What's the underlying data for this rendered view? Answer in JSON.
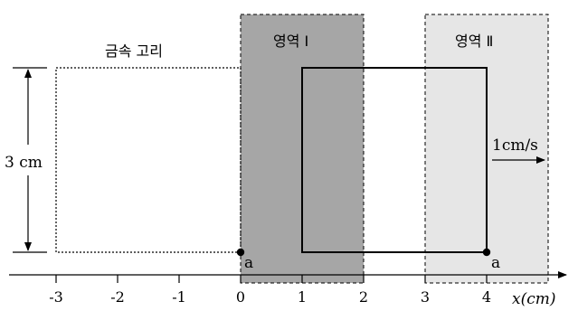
{
  "diagram": {
    "ring_label": "금속 고리",
    "region1_label": "영역 Ⅰ",
    "region2_label": "영역 Ⅱ",
    "height_label": "3 cm",
    "speed_label": "1cm/s",
    "point_label": "a",
    "axis_label": "x(cm)",
    "ticks": [
      "-3",
      "-2",
      "-1",
      "0",
      "1",
      "2",
      "3",
      "4"
    ],
    "region1_range_cm": [
      0,
      2
    ],
    "region2_range_cm": [
      3,
      5
    ],
    "ring_initial_x_cm": [
      -3,
      0
    ],
    "ring_current_x_cm": [
      1,
      4
    ],
    "ring_height_cm": 3,
    "speed_cm_per_s": 1,
    "colors": {
      "region1_fill": "#a6a6a6",
      "region2_fill": "#e6e6e6",
      "line": "#000000"
    }
  }
}
